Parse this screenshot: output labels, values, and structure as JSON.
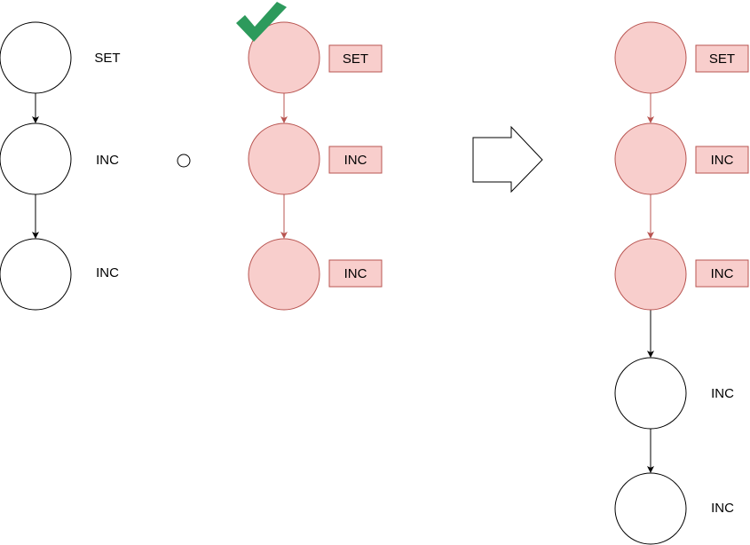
{
  "colors": {
    "highlight_fill": "#f8cecc",
    "highlight_stroke": "#b85450",
    "plain_stroke": "#000000",
    "check": "#2d9a5c"
  },
  "left_chain": {
    "labels": [
      "SET",
      "INC",
      "INC"
    ]
  },
  "operator_icon": "small-circle-compose-operator",
  "middle_chain": {
    "check_icon": "checkmark-icon",
    "labels": [
      "SET",
      "INC",
      "INC"
    ]
  },
  "transform_arrow_icon": "right-block-arrow-icon",
  "right_chain": {
    "highlighted_labels": [
      "SET",
      "INC",
      "INC"
    ],
    "plain_labels": [
      "INC",
      "INC"
    ]
  }
}
